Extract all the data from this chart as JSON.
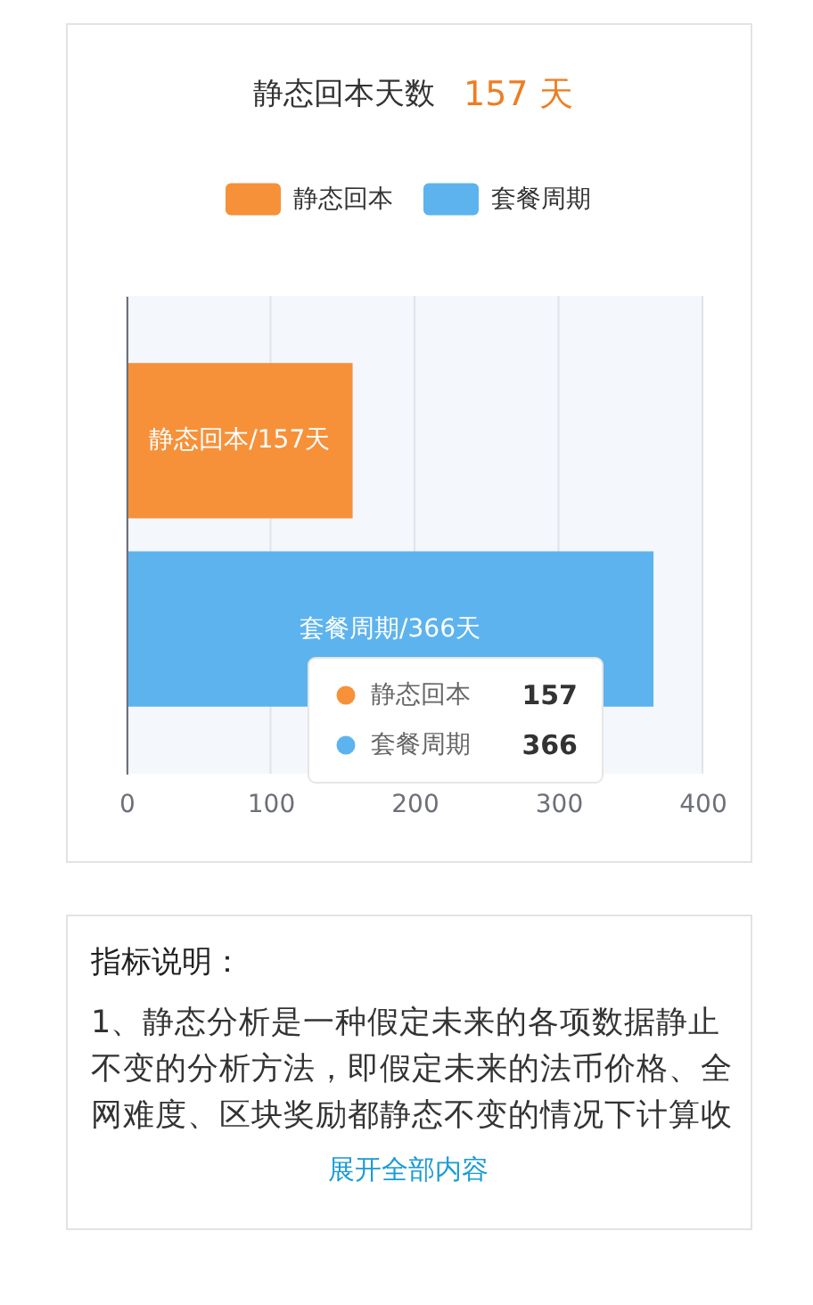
{
  "chart_data": {
    "type": "bar",
    "orientation": "horizontal",
    "title": "静态回本天数",
    "subtitle": "157 天",
    "categories": [
      null
    ],
    "series": [
      {
        "name": "静态回本",
        "color": "#f6913a",
        "values": [
          157
        ],
        "value_labels": [
          "静态回本/157天"
        ]
      },
      {
        "name": "套餐周期",
        "color": "#5db3ee",
        "values": [
          366
        ],
        "value_labels": [
          "套餐周期/366天"
        ]
      }
    ],
    "xlim": [
      0,
      400
    ],
    "xticks": [
      0,
      100,
      200,
      300,
      400
    ],
    "grid": "x",
    "legend": "top",
    "tick_labels": "x",
    "annotations": [
      "157",
      "366",
      "指标说明：",
      "1、静态分析是一种假定未来的各项数据静止",
      "不变的分析方法，即假定未来的法币价格、全",
      "网难度、区块奖励都静态不变的情况下计算收",
      "展开全部内容"
    ]
  }
}
